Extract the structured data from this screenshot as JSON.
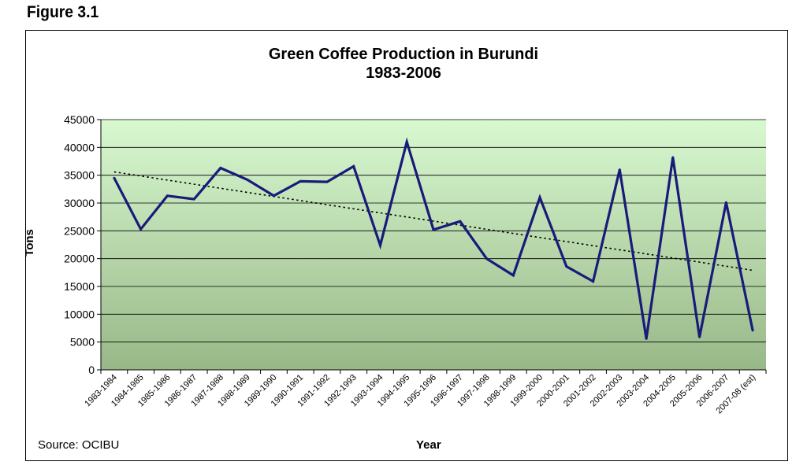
{
  "figure_label": "Figure 3.1",
  "source": "Source: OCIBU",
  "chart_data": {
    "type": "line",
    "title": "Green Coffee Production in Burundi",
    "subtitle": "1983-2006",
    "xlabel": "Year",
    "ylabel": "Tons",
    "ylim": [
      0,
      45000
    ],
    "yticks": [
      0,
      5000,
      10000,
      15000,
      20000,
      25000,
      30000,
      35000,
      40000,
      45000
    ],
    "grid": true,
    "colors": {
      "line": "#1a1a7a",
      "trend": "#000000",
      "plot_top": "#d8f8d0",
      "plot_bottom": "#98b888"
    },
    "categories": [
      "1983-1984",
      "1984-1985",
      "1985-1986",
      "1986-1987",
      "1987-1988",
      "1988-1989",
      "1989-1990",
      "1990-1991",
      "1991-1992",
      "1992-1993",
      "1993-1994",
      "1994-1995",
      "1995-1996",
      "1996-1997",
      "1997-1998",
      "1998-1999",
      "1999-2000",
      "2000-2001",
      "2001-2002",
      "2002-2003",
      "2003-2004",
      "2004-2005",
      "2005-2006",
      "2006-2007",
      "2007-08 (est)"
    ],
    "series": [
      {
        "values": [
          34500,
          25300,
          31300,
          30700,
          36300,
          34200,
          31300,
          33900,
          33800,
          36600,
          22400,
          41000,
          25200,
          26700,
          20000,
          17000,
          31000,
          18600,
          15900,
          36000,
          5600,
          38200,
          5900,
          30100,
          7100
        ]
      }
    ],
    "trendline": {
      "type": "linear",
      "style": "dotted",
      "start": 35600,
      "end": 17900
    }
  }
}
